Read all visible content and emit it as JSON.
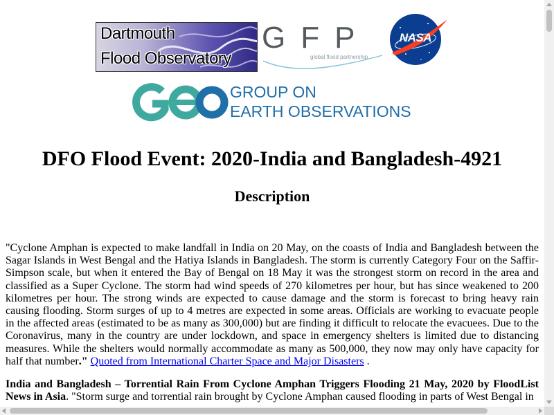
{
  "logos": {
    "dfo": {
      "line1": "Dartmouth",
      "line2": "Flood Observatory"
    },
    "gfp": {
      "letters": "GFP",
      "tagline": "global flood partnership"
    },
    "nasa": {
      "text": "NASA",
      "colors": {
        "disc": "#0b3d91",
        "swoosh": "#fc3d21"
      }
    },
    "geo": {
      "line1": "GROUP ON",
      "line2": "EARTH OBSERVATIONS",
      "colors": {
        "teal": "#3fa9a0",
        "blue": "#1f6fa8"
      }
    }
  },
  "page": {
    "title": "DFO Flood Event: 2020-India and Bangladesh-4921",
    "section_heading": "Description"
  },
  "description": {
    "quote": "\"Cyclone Amphan is expected to make landfall in India on 20 May, on the coasts of India and Bangladesh between the Sagar Islands in West Bengal and the Hatiya Islands in Bangladesh. The storm is currently Category Four on the Saffir-Simpson scale, but when it entered the Bay of Bengal on 18 May it was the strongest storm on record in the area and classified as a Super Cyclone. The storm had wind speeds of 270 kilometres per hour, but has since weakened to 200 kilometres per hour. The strong winds are expected to cause damage and the storm is forecast to bring heavy rain causing flooding. Storm surges of up to 4 metres are expected in some areas. Officials are working to evacuate people in the affected areas (estimated to be as many as 300,000) but are finding it difficult to relocate the evacuees. Due to the Coronavirus, many in the country are under lockdown, and space in emergency shelters is limited due to distancing measures. While the shelters would normally accommodate as many as 500,000, they now may only have capacity for half that number",
    "quote_end": ".\"",
    "source_link": "Quoted from International Charter Space and Major Disasters",
    "trailing": " ."
  },
  "second_entry": {
    "bold_title": "India and Bangladesh – Torrential Rain From Cyclone Amphan Triggers Flooding 21 May, 2020 by FloodList News in Asia",
    "text": ". \"Storm surge and torrential rain brought by Cyclone Amphan caused flooding in parts of West Bengal in"
  }
}
